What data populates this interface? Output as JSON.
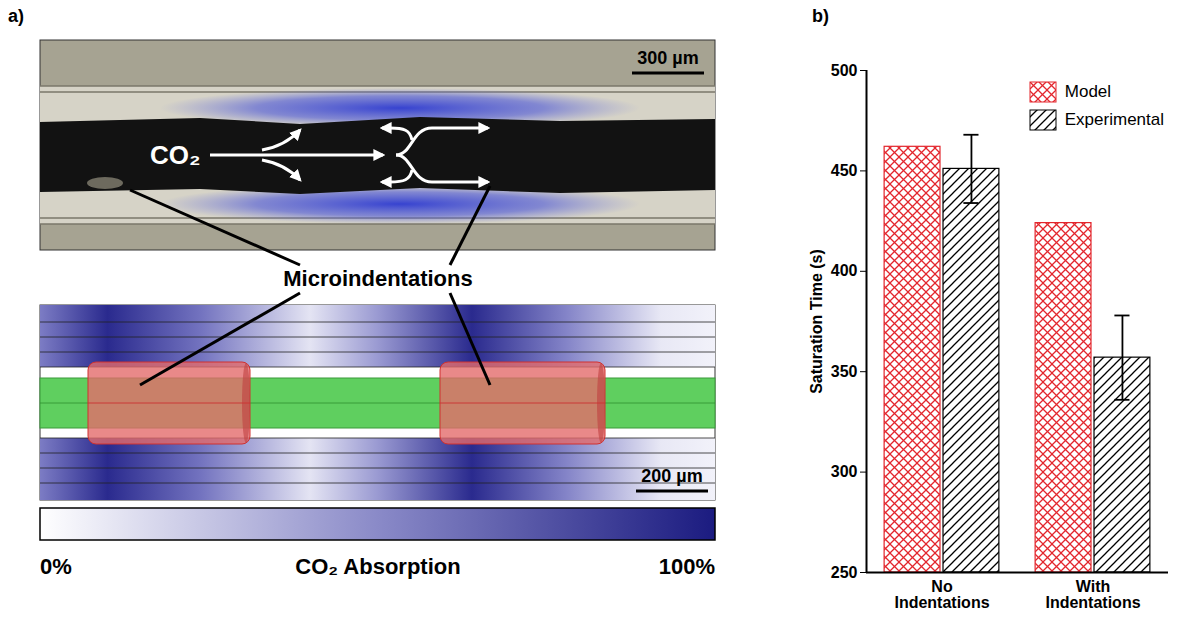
{
  "panel_a": {
    "label": "a)",
    "photo": {
      "scale_bar": "300 µm",
      "arrow_label": "CO₂"
    },
    "callout": "Microindentations",
    "model": {
      "scale_bar": "200 µm"
    },
    "colorbar": {
      "title": "CO₂ Absorption",
      "range": [
        0,
        100
      ],
      "ticks": [
        {
          "value": 0,
          "label": "0%"
        },
        {
          "value": 100,
          "label": "100%"
        }
      ]
    }
  },
  "panel_b": {
    "label": "b)"
  },
  "chart_data": {
    "type": "bar",
    "ylabel": "Saturation Time (s)",
    "categories": [
      "No Indentations",
      "With Indentations"
    ],
    "series": [
      {
        "name": "Model",
        "color": "#e3262d",
        "values": [
          462,
          424
        ]
      },
      {
        "name": "Experimental",
        "color": "#000000",
        "values": [
          451,
          357
        ],
        "errors": [
          17,
          21
        ]
      }
    ],
    "ylim": [
      250,
      500
    ],
    "yticks": [
      250,
      300,
      350,
      400,
      450,
      500
    ],
    "legend": "top-right",
    "grid": false
  }
}
